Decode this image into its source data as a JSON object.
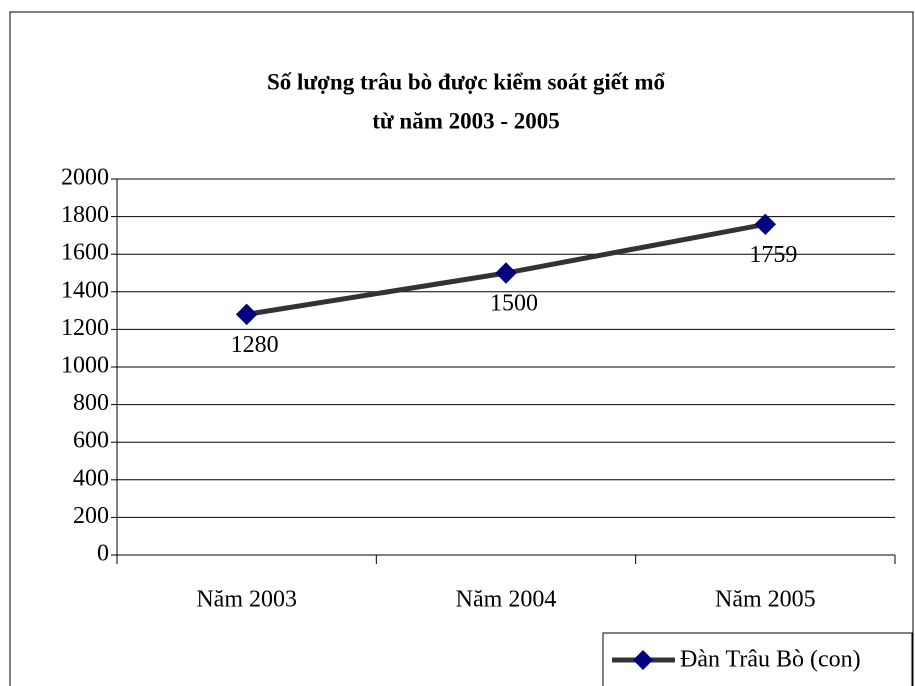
{
  "chart_data": {
    "type": "line",
    "title": [
      "Số lượng trâu bò được kiểm soát giết mổ",
      "từ năm 2003 - 2005"
    ],
    "categories": [
      "Năm 2003",
      "Năm 2004",
      "Năm 2005"
    ],
    "series": [
      {
        "name": "Đàn Trâu Bò (con)",
        "color": "#333333",
        "marker_color": "#000080",
        "values": [
          1280,
          1500,
          1759
        ]
      }
    ],
    "ylim": [
      0,
      2000
    ],
    "yticks": [
      0,
      200,
      400,
      600,
      800,
      1000,
      1200,
      1400,
      1600,
      1800,
      2000
    ],
    "grid": true,
    "data_labels": true,
    "legend": "bottom-right"
  }
}
